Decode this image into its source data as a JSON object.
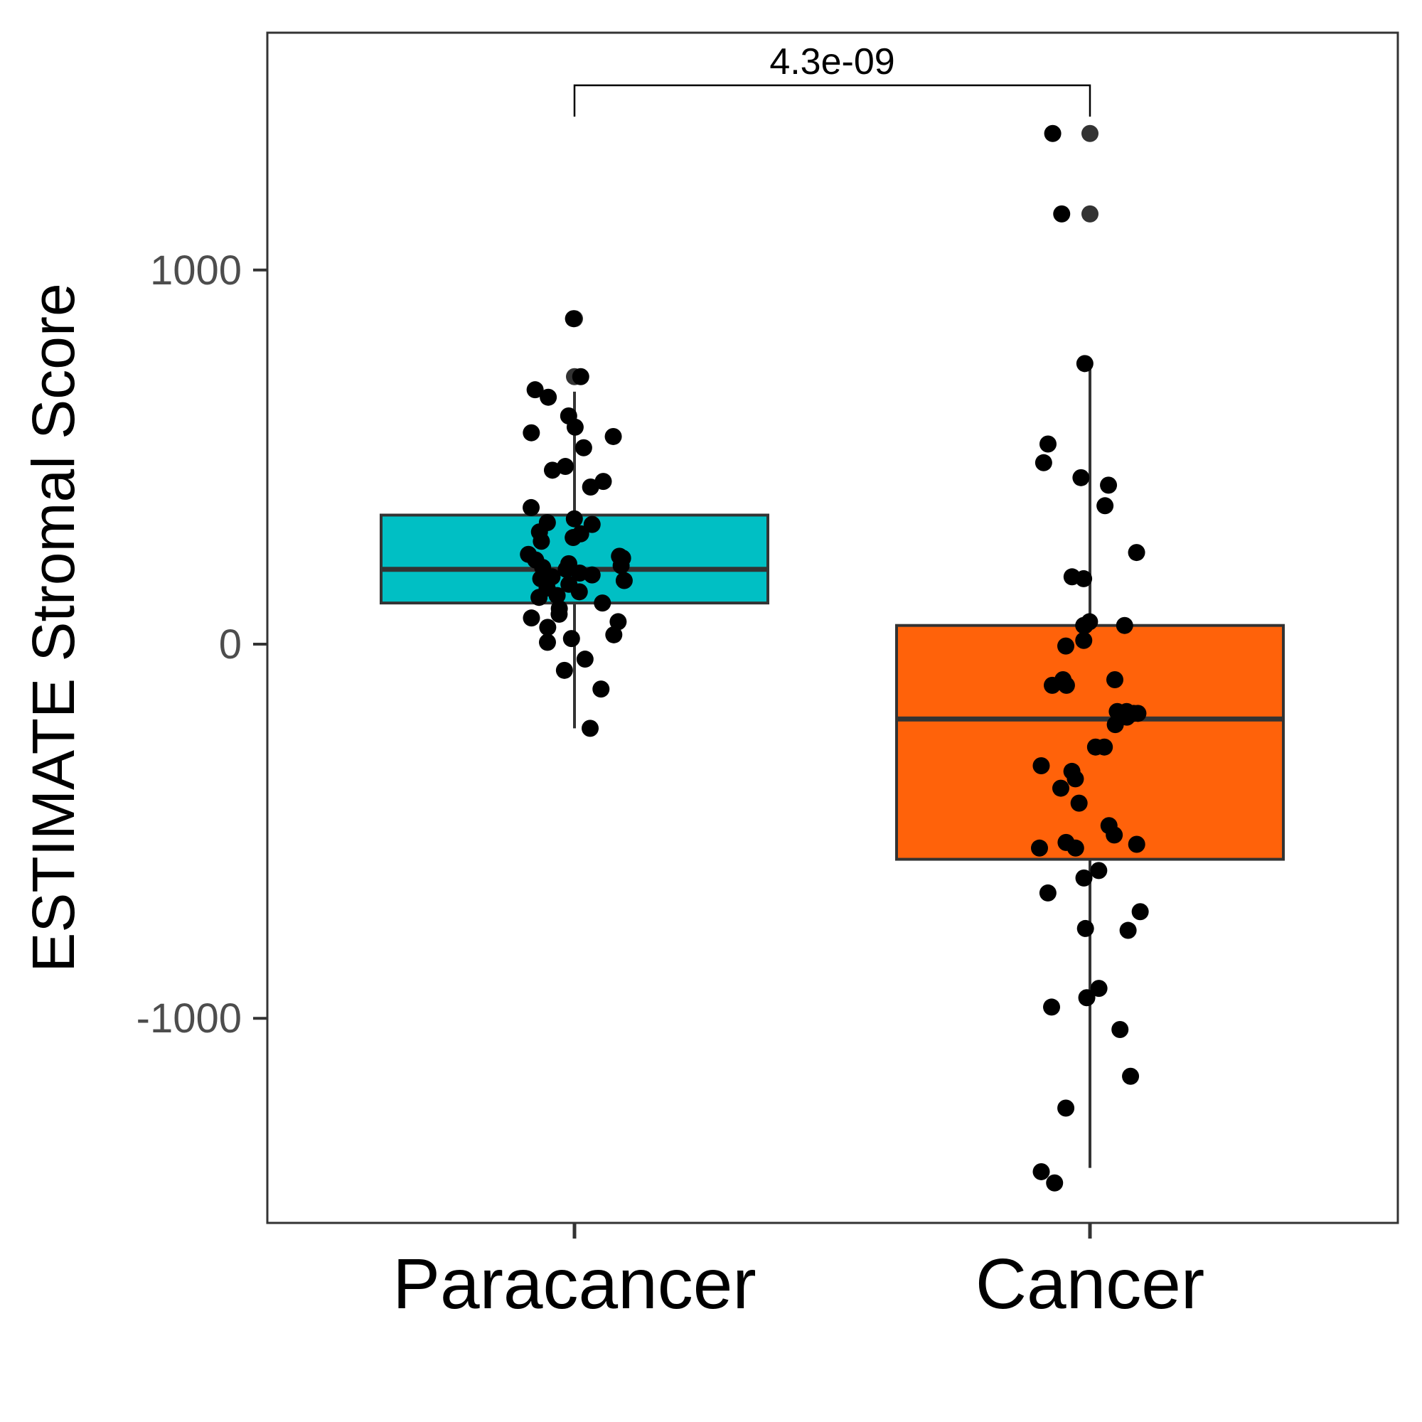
{
  "chart_data": {
    "type": "box",
    "ylabel": "ESTIMATE Stromal Score",
    "xlabel": "",
    "categories": [
      "Paracancer",
      "Cancer"
    ],
    "yticks": [
      1000,
      0,
      -1000
    ],
    "ytick_labels": [
      "1000",
      "0",
      "-1000"
    ],
    "ylim": [
      -1545,
      1640
    ],
    "grid": false,
    "legend": "none",
    "colors": {
      "Paracancer": "#00BFC4",
      "Cancer": "#FF620A",
      "outline": "#333333",
      "points": "#000000"
    },
    "boxes": [
      {
        "category": "Paracancer",
        "q1": 110,
        "median": 200,
        "q3": 345,
        "whisker_low": -225,
        "whisker_high": 675
      },
      {
        "category": "Cancer",
        "q1": -575,
        "median": -200,
        "q3": 50,
        "whisker_low": -1400,
        "whisker_high": 750
      }
    ],
    "outliers": [
      {
        "category": "Paracancer",
        "values": [
          870,
          715
        ]
      },
      {
        "category": "Cancer",
        "values": [
          1365,
          1150
        ]
      }
    ],
    "comparison": {
      "groups": [
        "Paracancer",
        "Cancer"
      ],
      "label": "4.3e-09"
    },
    "points": [
      {
        "category": "Paracancer",
        "values": [
          870,
          715,
          680,
          660,
          610,
          580,
          565,
          555,
          525,
          475,
          465,
          435,
          420,
          365,
          335,
          325,
          320,
          300,
          295,
          285,
          275,
          240,
          235,
          230,
          225,
          215,
          210,
          205,
          200,
          190,
          185,
          180,
          175,
          170,
          160,
          150,
          140,
          130,
          125,
          110,
          95,
          80,
          70,
          60,
          45,
          25,
          15,
          5,
          -40,
          -70,
          -120,
          -225
        ]
      },
      {
        "category": "Cancer",
        "values": [
          1365,
          1150,
          750,
          535,
          485,
          445,
          425,
          370,
          245,
          180,
          175,
          60,
          50,
          50,
          50,
          10,
          -5,
          -95,
          -95,
          -110,
          -110,
          -180,
          -180,
          -185,
          -185,
          -195,
          -215,
          -275,
          -275,
          -325,
          -340,
          -360,
          -385,
          -425,
          -485,
          -510,
          -530,
          -535,
          -545,
          -545,
          -605,
          -625,
          -665,
          -715,
          -760,
          -765,
          -920,
          -945,
          -970,
          -1030,
          -1155,
          -1240,
          -1410,
          -1440
        ]
      }
    ]
  }
}
